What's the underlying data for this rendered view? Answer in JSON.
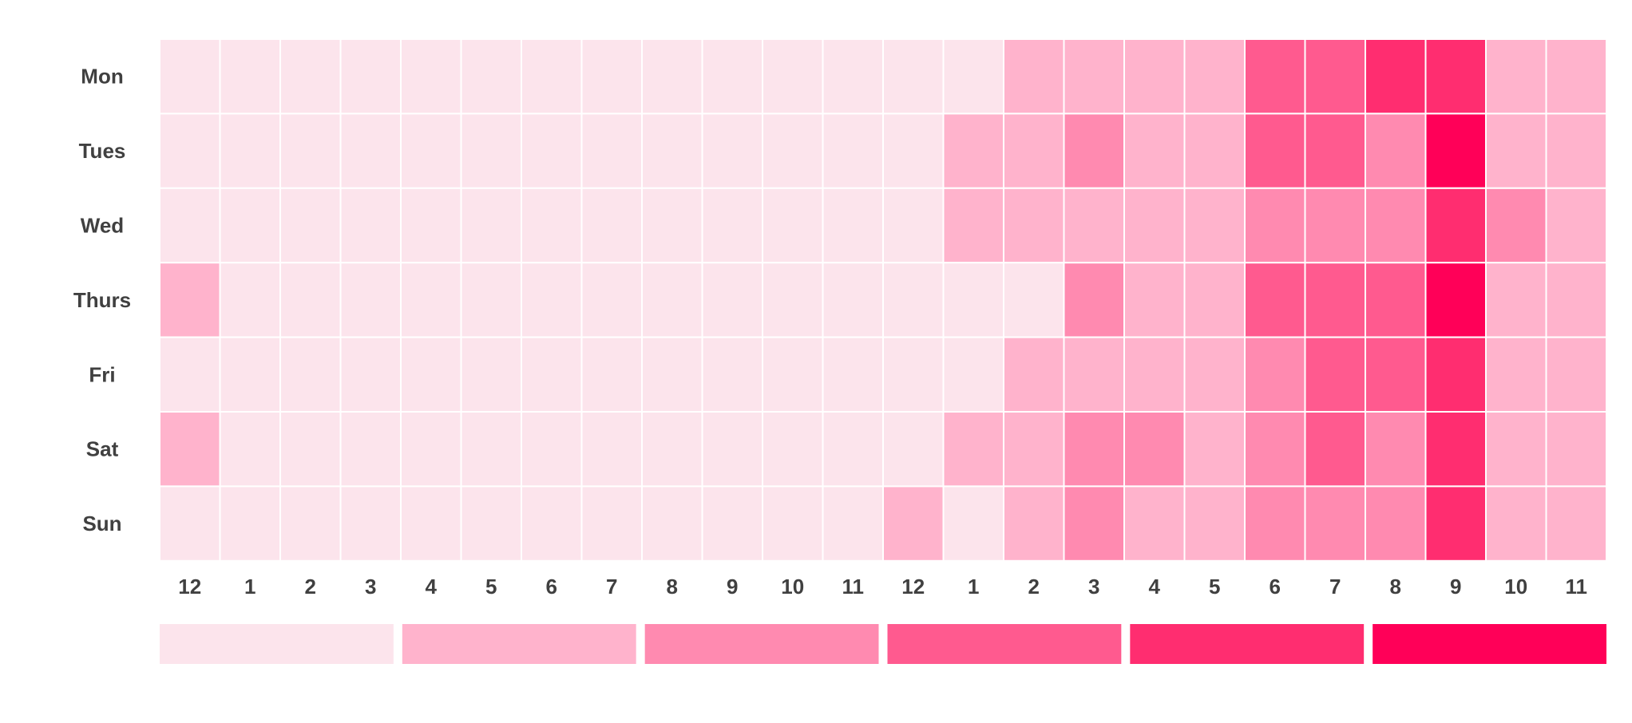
{
  "chart_data": {
    "type": "heatmap",
    "title": "",
    "xlabel": "",
    "ylabel": "",
    "rows": [
      "Mon",
      "Tues",
      "Wed",
      "Thurs",
      "Fri",
      "Sat",
      "Sun"
    ],
    "columns": [
      "12",
      "1",
      "2",
      "3",
      "4",
      "5",
      "6",
      "7",
      "8",
      "9",
      "10",
      "11",
      "12",
      "1",
      "2",
      "3",
      "4",
      "5",
      "6",
      "7",
      "8",
      "9",
      "10",
      "11"
    ],
    "values": [
      [
        0,
        0,
        0,
        0,
        0,
        0,
        0,
        0,
        0,
        0,
        0,
        0,
        0,
        0,
        1,
        1,
        1,
        1,
        3,
        3,
        4,
        4,
        1,
        1
      ],
      [
        0,
        0,
        0,
        0,
        0,
        0,
        0,
        0,
        0,
        0,
        0,
        0,
        0,
        1,
        1,
        2,
        1,
        1,
        3,
        3,
        2,
        5,
        1,
        1
      ],
      [
        0,
        0,
        0,
        0,
        0,
        0,
        0,
        0,
        0,
        0,
        0,
        0,
        0,
        1,
        1,
        1,
        1,
        1,
        2,
        2,
        2,
        4,
        2,
        1
      ],
      [
        1,
        0,
        0,
        0,
        0,
        0,
        0,
        0,
        0,
        0,
        0,
        0,
        0,
        0,
        0,
        2,
        1,
        1,
        3,
        3,
        3,
        5,
        1,
        1
      ],
      [
        0,
        0,
        0,
        0,
        0,
        0,
        0,
        0,
        0,
        0,
        0,
        0,
        0,
        0,
        1,
        1,
        1,
        1,
        2,
        3,
        3,
        4,
        1,
        1
      ],
      [
        1,
        0,
        0,
        0,
        0,
        0,
        0,
        0,
        0,
        0,
        0,
        0,
        0,
        1,
        1,
        2,
        2,
        1,
        2,
        3,
        2,
        4,
        1,
        1
      ],
      [
        0,
        0,
        0,
        0,
        0,
        0,
        0,
        0,
        0,
        0,
        0,
        0,
        1,
        0,
        1,
        2,
        1,
        1,
        2,
        2,
        2,
        4,
        1,
        1
      ]
    ],
    "color_scale": [
      "#fce4ec",
      "#ffb3cc",
      "#ff8ab0",
      "#ff5a8f",
      "#ff2d70",
      "#ff0058"
    ],
    "legend": {
      "placement": "bottom",
      "levels": [
        0,
        1,
        2,
        3,
        4,
        5
      ]
    },
    "grid": true,
    "cell_border_color": "#ffffff",
    "label_color": "#404040"
  }
}
